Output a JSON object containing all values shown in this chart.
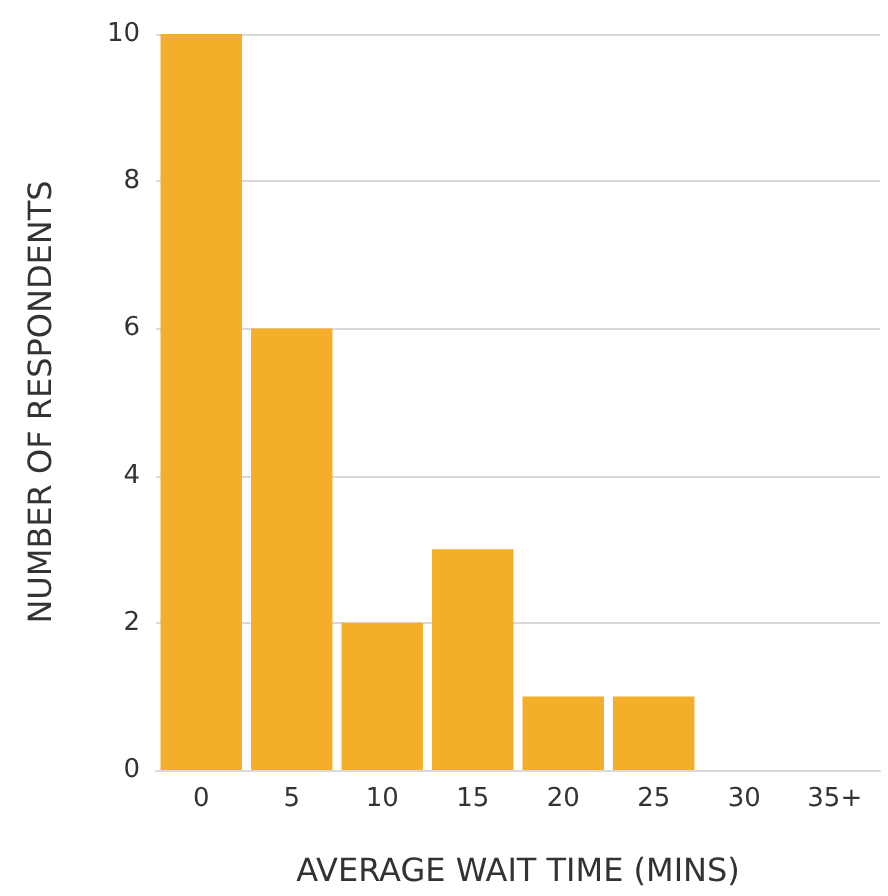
{
  "chart_data": {
    "type": "bar",
    "xlabel": "AVERAGE WAIT TIME (MINS)",
    "ylabel": "NUMBER OF RESPONDENTS",
    "categories": [
      "0",
      "5",
      "10",
      "15",
      "20",
      "25",
      "30",
      "35+"
    ],
    "values": [
      10,
      6,
      2,
      3,
      1,
      1,
      0,
      0
    ],
    "color": "#f5ae2a",
    "ylim": [
      0,
      10
    ],
    "yticks": [
      0,
      2,
      4,
      6,
      8,
      10
    ],
    "grid": "y"
  }
}
